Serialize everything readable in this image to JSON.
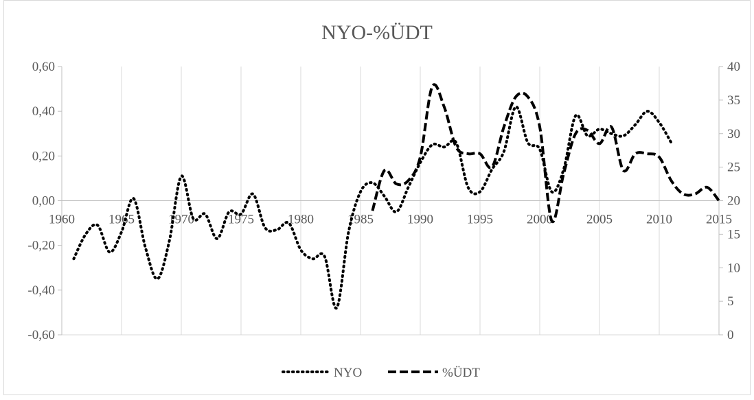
{
  "chart_data": {
    "type": "line",
    "title": "NYO-%ÜDT",
    "grid": "vertical",
    "legend_position": "bottom",
    "x_axis": {
      "min": 1960,
      "max": 2015,
      "ticks": [
        1960,
        1965,
        1970,
        1975,
        1980,
        1985,
        1990,
        1995,
        2000,
        2005,
        2010,
        2015
      ],
      "crosses_at": "0,00"
    },
    "y_left": {
      "min": -0.6,
      "max": 0.6,
      "ticks": [
        -0.6,
        -0.4,
        -0.2,
        0.0,
        0.2,
        0.4,
        0.6
      ],
      "tick_labels": [
        "-0,60",
        "-0,40",
        "-0,20",
        "0,00",
        "0,20",
        "0,40",
        "0,60"
      ]
    },
    "y_right": {
      "min": 0,
      "max": 40,
      "ticks": [
        0,
        5,
        10,
        15,
        20,
        25,
        30,
        35,
        40
      ],
      "tick_labels": [
        "0",
        "5",
        "10",
        "15",
        "20",
        "25",
        "30",
        "35",
        "40"
      ]
    },
    "series": [
      {
        "name": "NYO",
        "axis": "left",
        "style": "dotted",
        "color": "#000000",
        "x": [
          1961,
          1962,
          1963,
          1964,
          1965,
          1966,
          1967,
          1968,
          1969,
          1970,
          1971,
          1972,
          1973,
          1974,
          1975,
          1976,
          1977,
          1978,
          1979,
          1980,
          1981,
          1982,
          1983,
          1984,
          1985,
          1986,
          1987,
          1988,
          1989,
          1990,
          1991,
          1992,
          1993,
          1994,
          1995,
          1996,
          1997,
          1998,
          1999,
          2000,
          2001,
          2002,
          2003,
          2004,
          2005,
          2006,
          2007,
          2008,
          2009,
          2010,
          2011
        ],
        "values": [
          -0.26,
          -0.15,
          -0.11,
          -0.23,
          -0.14,
          0.01,
          -0.21,
          -0.35,
          -0.18,
          0.11,
          -0.08,
          -0.06,
          -0.17,
          -0.05,
          -0.06,
          0.03,
          -0.12,
          -0.13,
          -0.1,
          -0.22,
          -0.26,
          -0.25,
          -0.48,
          -0.14,
          0.04,
          0.08,
          0.02,
          -0.05,
          0.06,
          0.17,
          0.25,
          0.24,
          0.26,
          0.06,
          0.04,
          0.14,
          0.22,
          0.42,
          0.26,
          0.23,
          0.04,
          0.14,
          0.38,
          0.29,
          0.32,
          0.3,
          0.29,
          0.34,
          0.4,
          0.35,
          0.26
        ]
      },
      {
        "name": "%ÜDT",
        "axis": "right",
        "style": "dashed",
        "color": "#000000",
        "x": [
          1986,
          1987,
          1988,
          1989,
          1990,
          1991,
          1992,
          1993,
          1994,
          1995,
          1996,
          1997,
          1998,
          1999,
          2000,
          2001,
          2002,
          2003,
          2004,
          2005,
          2006,
          2007,
          2008,
          2009,
          2010,
          2011,
          2012,
          2013,
          2014,
          2015
        ],
        "values": [
          18.5,
          24.5,
          22.5,
          23.0,
          26.5,
          37.0,
          34.0,
          28.0,
          27.0,
          27.0,
          25.0,
          31.0,
          35.5,
          35.5,
          31.0,
          17.0,
          24.0,
          30.0,
          30.5,
          28.5,
          31.0,
          24.5,
          27.0,
          27.0,
          26.5,
          23.0,
          21.0,
          21.0,
          22.0,
          20.0
        ]
      }
    ]
  }
}
